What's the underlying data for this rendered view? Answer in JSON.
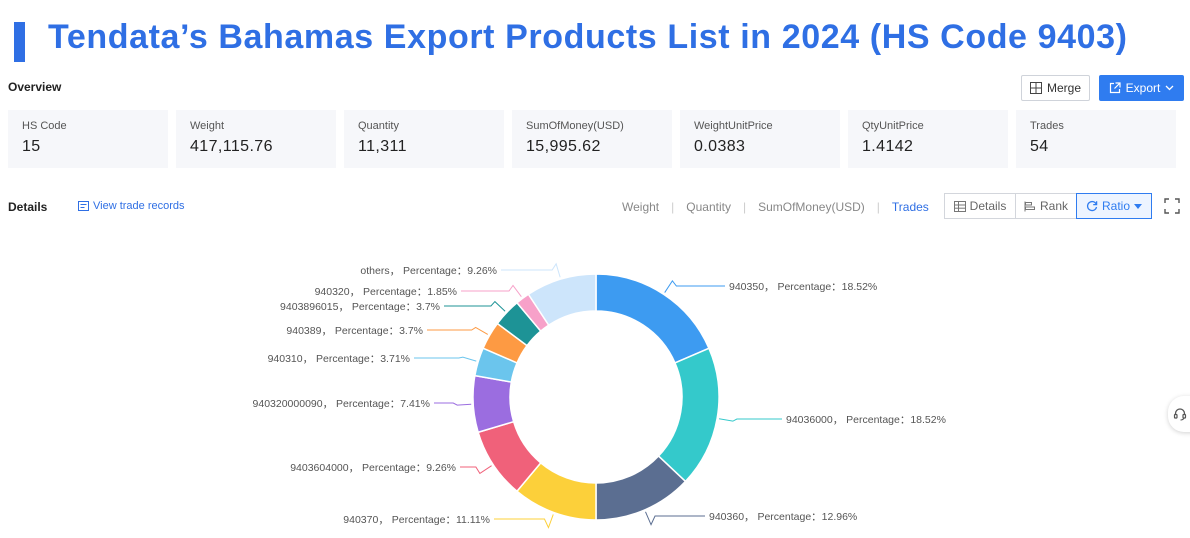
{
  "title": "Tendata’s Bahamas Export Products List in 2024 (HS Code 9403)",
  "colors": {
    "accent": "#2f6fe4",
    "button": "#2f7cf0"
  },
  "overview": {
    "label": "Overview",
    "merge_label": "Merge",
    "export_label": "Export",
    "stats": [
      {
        "label": "HS Code",
        "value": "15"
      },
      {
        "label": "Weight",
        "value": "417,115.76"
      },
      {
        "label": "Quantity",
        "value": "11,311"
      },
      {
        "label": "SumOfMoney(USD)",
        "value": "15,995.62"
      },
      {
        "label": "WeightUnitPrice",
        "value": "0.0383"
      },
      {
        "label": "QtyUnitPrice",
        "value": "1.4142"
      },
      {
        "label": "Trades",
        "value": "54"
      }
    ]
  },
  "details": {
    "label": "Details",
    "view_records": "View trade records",
    "metric_tabs": [
      "Weight",
      "Quantity",
      "SumOfMoney(USD)",
      "Trades"
    ],
    "active_metric": "Trades",
    "view_tabs": {
      "details": "Details",
      "rank": "Rank",
      "ratio": "Ratio"
    }
  },
  "chart_data": {
    "type": "pie",
    "donut": true,
    "label_format": "{name}， Percentage：{value}%",
    "slices": [
      {
        "name": "940350",
        "value": 18.52,
        "color": "#3d9bf1"
      },
      {
        "name": "94036000",
        "value": 18.52,
        "color": "#34c9cb"
      },
      {
        "name": "940360",
        "value": 12.96,
        "color": "#5b6e91"
      },
      {
        "name": "940370",
        "value": 11.11,
        "color": "#fcd03a"
      },
      {
        "name": "9403604000",
        "value": 9.26,
        "color": "#f0617a"
      },
      {
        "name": "940320000090",
        "value": 7.41,
        "color": "#9b6de0"
      },
      {
        "name": "940310",
        "value": 3.71,
        "color": "#6bc5ed"
      },
      {
        "name": "940389",
        "value": 3.7,
        "color": "#fd9a43"
      },
      {
        "name": "9403896015",
        "value": 3.7,
        "color": "#1d9396"
      },
      {
        "name": "940320",
        "value": 1.85,
        "color": "#f7a1c9"
      },
      {
        "name": "others",
        "value": 9.26,
        "color": "#cde5fb"
      }
    ]
  }
}
